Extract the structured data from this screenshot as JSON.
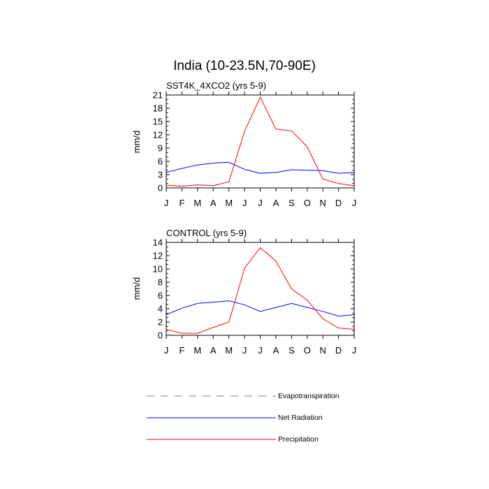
{
  "figure": {
    "title": "India (10-23.5N,70-90E)"
  },
  "colors": {
    "evapotranspiration": "#808080",
    "net_radiation": "#0000ff",
    "precipitation": "#ff0000"
  },
  "chart_data": [
    {
      "type": "line",
      "title": "SST4K_4XCO2 (yrs 5-9)",
      "xlabel": "",
      "ylabel": "mm/d",
      "categories": [
        "J",
        "F",
        "M",
        "A",
        "M",
        "J",
        "J",
        "A",
        "S",
        "O",
        "N",
        "D",
        "J"
      ],
      "ylim": [
        0,
        21
      ],
      "yticks": [
        0,
        3,
        6,
        9,
        12,
        15,
        18,
        21
      ],
      "series": [
        {
          "name": "Net Radiation",
          "color": "#0000ff",
          "values": [
            3.5,
            4.4,
            5.2,
            5.6,
            5.8,
            4.2,
            3.3,
            3.5,
            4.1,
            4.0,
            3.9,
            3.3,
            3.5
          ]
        },
        {
          "name": "Precipitation",
          "color": "#ff0000",
          "values": [
            0.6,
            0.4,
            0.7,
            0.5,
            1.4,
            12.8,
            20.5,
            13.3,
            12.9,
            9.3,
            2.0,
            1.0,
            0.5
          ]
        }
      ]
    },
    {
      "type": "line",
      "title": "CONTROL (yrs 5-9)",
      "xlabel": "",
      "ylabel": "mm/d",
      "categories": [
        "J",
        "F",
        "M",
        "A",
        "M",
        "J",
        "J",
        "A",
        "S",
        "O",
        "N",
        "D",
        "J"
      ],
      "ylim": [
        0,
        14
      ],
      "yticks": [
        0,
        2,
        4,
        6,
        8,
        10,
        12,
        14
      ],
      "series": [
        {
          "name": "Net Radiation",
          "color": "#0000ff",
          "values": [
            3.1,
            4.1,
            4.8,
            5.0,
            5.2,
            4.6,
            3.6,
            4.2,
            4.8,
            4.2,
            3.6,
            2.9,
            3.1
          ]
        },
        {
          "name": "Precipitation",
          "color": "#ff0000",
          "values": [
            0.9,
            0.3,
            0.3,
            1.2,
            2.0,
            10.1,
            13.2,
            11.2,
            7.0,
            5.3,
            2.5,
            1.1,
            0.9
          ]
        }
      ]
    }
  ],
  "legend": {
    "items": [
      {
        "label": "Evapotranspiration",
        "color": "#808080",
        "style": "dashed"
      },
      {
        "label": "Net Radiation",
        "color": "#0000ff",
        "style": "solid"
      },
      {
        "label": "Precipitation",
        "color": "#ff0000",
        "style": "solid"
      }
    ]
  }
}
